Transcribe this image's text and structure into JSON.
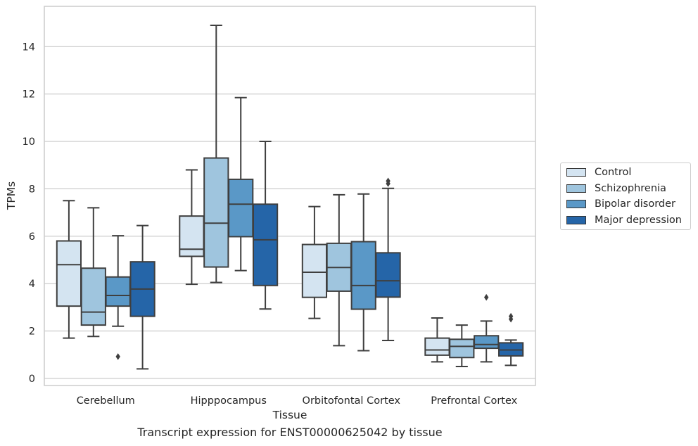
{
  "caption": "Transcript expression for ENST00000625042 by tissue",
  "colors": {
    "grid": "#cccccc",
    "frame": "#cccccc",
    "line": "#3f3f3f"
  },
  "chart_data": {
    "type": "box",
    "title": "",
    "xlabel": "Tissue",
    "ylabel": "TPMs",
    "ylim": [
      -0.3,
      15.7
    ],
    "yticks": [
      0,
      2,
      4,
      6,
      8,
      10,
      12,
      14
    ],
    "grid": "horizontal",
    "legend_placement": "outside-right",
    "categories": [
      "Cerebellum",
      "Hipppocampus",
      "Orbitofontal Cortex",
      "Prefrontal Cortex"
    ],
    "series": [
      {
        "name": "Control",
        "color": "#d4e4f1",
        "boxes": [
          {
            "whislo": 1.7,
            "q1": 3.05,
            "med": 4.8,
            "q3": 5.8,
            "whishi": 7.5,
            "fliers": []
          },
          {
            "whislo": 3.97,
            "q1": 5.15,
            "med": 5.45,
            "q3": 6.85,
            "whishi": 8.8,
            "fliers": []
          },
          {
            "whislo": 2.53,
            "q1": 3.42,
            "med": 4.48,
            "q3": 5.65,
            "whishi": 7.25,
            "fliers": []
          },
          {
            "whislo": 0.7,
            "q1": 0.98,
            "med": 1.2,
            "q3": 1.7,
            "whishi": 2.55,
            "fliers": []
          }
        ]
      },
      {
        "name": "Schizophrenia",
        "color": "#9fc5de",
        "boxes": [
          {
            "whislo": 1.77,
            "q1": 2.25,
            "med": 2.8,
            "q3": 4.65,
            "whishi": 7.2,
            "fliers": []
          },
          {
            "whislo": 4.05,
            "q1": 4.7,
            "med": 6.55,
            "q3": 9.3,
            "whishi": 14.9,
            "fliers": []
          },
          {
            "whislo": 1.38,
            "q1": 3.68,
            "med": 4.68,
            "q3": 5.7,
            "whishi": 7.75,
            "fliers": []
          },
          {
            "whislo": 0.5,
            "q1": 0.88,
            "med": 1.35,
            "q3": 1.65,
            "whishi": 2.25,
            "fliers": []
          }
        ]
      },
      {
        "name": "Bipolar disorder",
        "color": "#5a98c7",
        "boxes": [
          {
            "whislo": 2.2,
            "q1": 3.05,
            "med": 3.5,
            "q3": 4.28,
            "whishi": 6.02,
            "fliers": [
              0.92
            ]
          },
          {
            "whislo": 4.55,
            "q1": 5.98,
            "med": 7.35,
            "q3": 8.4,
            "whishi": 11.85,
            "fliers": []
          },
          {
            "whislo": 1.17,
            "q1": 2.92,
            "med": 3.92,
            "q3": 5.77,
            "whishi": 7.78,
            "fliers": []
          },
          {
            "whislo": 0.7,
            "q1": 1.27,
            "med": 1.43,
            "q3": 1.8,
            "whishi": 2.42,
            "fliers": [
              3.42
            ]
          }
        ]
      },
      {
        "name": "Major depression",
        "color": "#2565a8",
        "boxes": [
          {
            "whislo": 0.4,
            "q1": 2.62,
            "med": 3.77,
            "q3": 4.92,
            "whishi": 6.45,
            "fliers": []
          },
          {
            "whislo": 2.93,
            "q1": 3.92,
            "med": 5.85,
            "q3": 7.35,
            "whishi": 10.0,
            "fliers": []
          },
          {
            "whislo": 1.6,
            "q1": 3.43,
            "med": 4.12,
            "q3": 5.3,
            "whishi": 8.02,
            "fliers": [
              8.22,
              8.33
            ]
          },
          {
            "whislo": 0.55,
            "q1": 0.95,
            "med": 1.2,
            "q3": 1.5,
            "whishi": 1.62,
            "fliers": [
              2.5,
              2.62
            ]
          }
        ]
      }
    ]
  }
}
